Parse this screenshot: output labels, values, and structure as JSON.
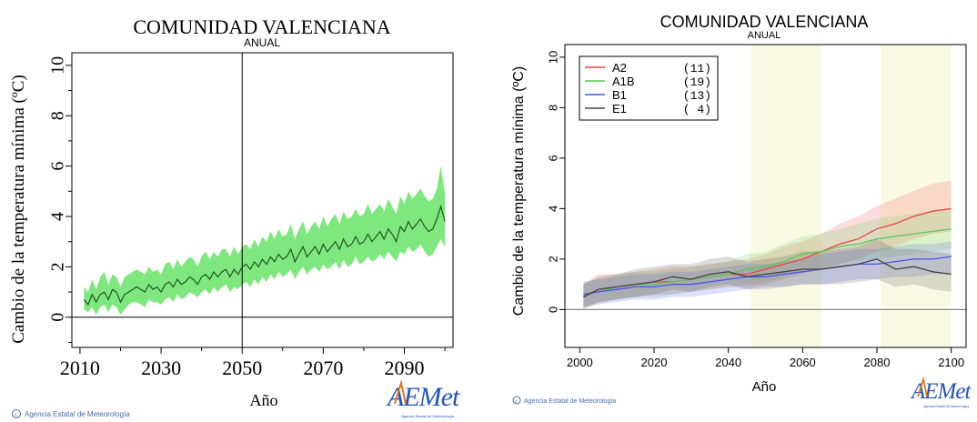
{
  "colors": {
    "band_green": "#7ee87e",
    "line_dark": "#225522",
    "axis": "#000000",
    "A2": "#ee4444",
    "A1B": "#55cc55",
    "B1": "#4455ee",
    "E1": "#444444",
    "highlight": "#fafae4",
    "logo_blue": "#2255bb",
    "logo_orange": "#e07820",
    "footer_blue": "#4a6aa8"
  },
  "footer": {
    "left_credit": "Agencia Estatal de Meteorología",
    "right_credit": "Agencia Estatal de Meteorología",
    "logo_text": "AEMet",
    "logo_subtext": "Agencia Estatal de Meteorología"
  },
  "chart_data": [
    {
      "type": "area",
      "title": "COMUNIDAD VALENCIANA",
      "subtitle": "ANUAL",
      "xlabel": "Año",
      "ylabel": "Cambio de la temperatura mínima (ºC)",
      "xlim": [
        2008,
        2102
      ],
      "ylim": [
        -1.2,
        10.5
      ],
      "xticks": [
        2010,
        2030,
        2050,
        2070,
        2090
      ],
      "yticks": [
        0,
        2,
        4,
        6,
        8,
        10
      ],
      "vline": 2050,
      "hline": 0,
      "x": [
        2011,
        2012,
        2013,
        2014,
        2015,
        2016,
        2017,
        2018,
        2019,
        2020,
        2021,
        2022,
        2023,
        2024,
        2025,
        2026,
        2027,
        2028,
        2029,
        2030,
        2031,
        2032,
        2033,
        2034,
        2035,
        2036,
        2037,
        2038,
        2039,
        2040,
        2041,
        2042,
        2043,
        2044,
        2045,
        2046,
        2047,
        2048,
        2049,
        2050,
        2051,
        2052,
        2053,
        2054,
        2055,
        2056,
        2057,
        2058,
        2059,
        2060,
        2061,
        2062,
        2063,
        2064,
        2065,
        2066,
        2067,
        2068,
        2069,
        2070,
        2071,
        2072,
        2073,
        2074,
        2075,
        2076,
        2077,
        2078,
        2079,
        2080,
        2081,
        2082,
        2083,
        2084,
        2085,
        2086,
        2087,
        2088,
        2089,
        2090,
        2091,
        2092,
        2093,
        2094,
        2095,
        2096,
        2097,
        2098,
        2099,
        2100
      ],
      "mean": [
        0.7,
        0.5,
        0.9,
        0.6,
        0.9,
        1.0,
        0.7,
        1.1,
        1.0,
        0.6,
        0.9,
        1.0,
        1.1,
        1.2,
        1.1,
        1.0,
        1.3,
        1.1,
        1.2,
        1.0,
        1.3,
        1.4,
        1.2,
        1.5,
        1.3,
        1.4,
        1.6,
        1.5,
        1.3,
        1.6,
        1.7,
        1.5,
        1.8,
        1.6,
        1.8,
        1.9,
        1.6,
        1.9,
        1.7,
        2.0,
        2.1,
        1.9,
        2.2,
        2.0,
        2.3,
        2.1,
        2.4,
        2.2,
        2.5,
        2.3,
        2.4,
        2.7,
        2.2,
        2.5,
        2.8,
        2.4,
        2.6,
        2.8,
        2.5,
        2.9,
        2.6,
        2.8,
        3.0,
        2.7,
        3.1,
        2.8,
        2.9,
        3.2,
        2.9,
        3.0,
        3.3,
        3.0,
        3.2,
        3.4,
        3.1,
        3.5,
        3.3,
        3.0,
        3.6,
        3.4,
        3.8,
        3.5,
        3.7,
        3.9,
        3.6,
        3.4,
        3.5,
        3.9,
        4.4,
        3.8
      ],
      "lower": [
        0.3,
        0.2,
        0.4,
        0.1,
        0.4,
        0.5,
        0.2,
        0.5,
        0.4,
        0.1,
        0.3,
        0.5,
        0.6,
        0.6,
        0.5,
        0.4,
        0.7,
        0.6,
        0.6,
        0.5,
        0.7,
        0.8,
        0.6,
        0.9,
        0.7,
        0.8,
        1.0,
        0.9,
        0.8,
        1.0,
        1.1,
        0.9,
        1.2,
        1.0,
        1.2,
        1.3,
        1.0,
        1.2,
        1.1,
        1.3,
        1.4,
        1.2,
        1.5,
        1.3,
        1.6,
        1.4,
        1.7,
        1.5,
        1.8,
        1.6,
        1.7,
        1.9,
        1.5,
        1.8,
        2.0,
        1.7,
        1.9,
        2.0,
        1.8,
        2.1,
        1.9,
        2.0,
        2.2,
        1.9,
        2.3,
        2.0,
        2.1,
        2.4,
        2.1,
        2.2,
        2.4,
        2.2,
        2.3,
        2.5,
        2.3,
        2.6,
        2.4,
        2.2,
        2.6,
        2.5,
        2.8,
        2.6,
        2.7,
        2.9,
        2.6,
        2.4,
        2.5,
        2.8,
        3.1,
        2.8
      ],
      "upper": [
        1.2,
        1.0,
        1.5,
        1.1,
        1.6,
        1.8,
        1.3,
        1.7,
        1.6,
        1.2,
        1.6,
        1.7,
        1.8,
        1.9,
        1.8,
        1.7,
        2.0,
        1.8,
        1.9,
        1.7,
        2.1,
        2.2,
        1.9,
        2.3,
        2.0,
        2.2,
        2.4,
        2.3,
        2.0,
        2.4,
        2.6,
        2.3,
        2.6,
        2.4,
        2.7,
        2.7,
        2.4,
        2.8,
        2.5,
        2.8,
        2.9,
        2.7,
        3.1,
        2.8,
        3.2,
        3.0,
        3.4,
        3.1,
        3.5,
        3.2,
        3.3,
        3.7,
        3.1,
        3.5,
        3.8,
        3.3,
        3.6,
        3.8,
        3.5,
        4.0,
        3.6,
        3.9,
        4.1,
        3.7,
        4.2,
        3.9,
        4.0,
        4.3,
        4.0,
        4.1,
        4.5,
        4.1,
        4.3,
        4.5,
        4.2,
        4.7,
        4.4,
        4.1,
        4.8,
        4.5,
        5.0,
        4.7,
        4.9,
        5.1,
        4.8,
        4.6,
        4.7,
        5.1,
        6.0,
        4.9
      ]
    },
    {
      "type": "line",
      "title": "COMUNIDAD VALENCIANA",
      "subtitle": "ANUAL",
      "xlabel": "Año",
      "ylabel": "Cambio de la temperatura mínima (ºC)",
      "xlim": [
        1996,
        2104
      ],
      "ylim": [
        -1.5,
        10.5
      ],
      "xticks": [
        2000,
        2020,
        2040,
        2060,
        2080,
        2100
      ],
      "yticks": [
        0,
        2,
        4,
        6,
        8,
        10
      ],
      "highlight_periods": [
        [
          2046,
          2065
        ],
        [
          2081,
          2100
        ]
      ],
      "hline": 0,
      "legend_position": "top-left",
      "x": [
        2001,
        2005,
        2010,
        2015,
        2020,
        2025,
        2030,
        2035,
        2040,
        2045,
        2050,
        2055,
        2060,
        2065,
        2070,
        2075,
        2080,
        2085,
        2090,
        2095,
        2100
      ],
      "series": [
        {
          "name": "A2",
          "count": "(11)",
          "color": "#ee4444",
          "values": [
            0.5,
            0.8,
            0.9,
            1.0,
            1.1,
            1.1,
            1.2,
            1.3,
            1.4,
            1.4,
            1.6,
            1.8,
            2.0,
            2.3,
            2.6,
            2.8,
            3.2,
            3.4,
            3.7,
            3.9,
            4.0
          ],
          "lower": [
            0.1,
            0.3,
            0.4,
            0.5,
            0.6,
            0.6,
            0.7,
            0.8,
            0.9,
            0.9,
            1.0,
            1.2,
            1.4,
            1.6,
            1.8,
            2.0,
            2.3,
            2.5,
            2.8,
            3.0,
            3.1
          ],
          "upper": [
            1.0,
            1.4,
            1.4,
            1.5,
            1.6,
            1.7,
            1.7,
            1.8,
            1.9,
            2.0,
            2.2,
            2.5,
            2.7,
            3.0,
            3.4,
            3.7,
            4.1,
            4.4,
            4.7,
            5.0,
            5.1
          ]
        },
        {
          "name": "A1B",
          "count": "(19)",
          "color": "#55cc55",
          "values": [
            0.6,
            0.7,
            0.9,
            1.0,
            1.0,
            1.1,
            1.2,
            1.3,
            1.4,
            1.6,
            1.7,
            1.9,
            2.2,
            2.3,
            2.5,
            2.6,
            2.8,
            2.9,
            3.0,
            3.1,
            3.2
          ],
          "lower": [
            0.1,
            0.2,
            0.4,
            0.5,
            0.5,
            0.6,
            0.7,
            0.8,
            0.9,
            1.0,
            1.1,
            1.3,
            1.5,
            1.6,
            1.8,
            1.9,
            2.0,
            2.1,
            2.2,
            2.3,
            2.4
          ],
          "upper": [
            1.1,
            1.2,
            1.4,
            1.5,
            1.5,
            1.6,
            1.7,
            1.8,
            1.9,
            2.2,
            2.3,
            2.6,
            2.9,
            3.0,
            3.2,
            3.4,
            3.6,
            3.7,
            3.8,
            3.9,
            4.0
          ]
        },
        {
          "name": "B1",
          "count": "(13)",
          "color": "#4455ee",
          "values": [
            0.6,
            0.7,
            0.8,
            0.9,
            0.9,
            1.0,
            1.0,
            1.1,
            1.2,
            1.3,
            1.3,
            1.4,
            1.5,
            1.6,
            1.7,
            1.8,
            1.8,
            1.9,
            2.0,
            2.0,
            2.1
          ],
          "lower": [
            0.1,
            0.2,
            0.3,
            0.4,
            0.4,
            0.5,
            0.5,
            0.6,
            0.7,
            0.8,
            0.8,
            0.9,
            1.0,
            1.0,
            1.1,
            1.2,
            1.2,
            1.3,
            1.3,
            1.4,
            1.4
          ],
          "upper": [
            1.1,
            1.2,
            1.3,
            1.4,
            1.4,
            1.5,
            1.5,
            1.6,
            1.7,
            1.8,
            1.8,
            1.9,
            2.0,
            2.2,
            2.3,
            2.4,
            2.4,
            2.5,
            2.6,
            2.6,
            2.7
          ]
        },
        {
          "name": "E1",
          "count": "( 4)",
          "color": "#444444",
          "values": [
            0.5,
            0.8,
            0.9,
            1.0,
            1.1,
            1.3,
            1.2,
            1.4,
            1.5,
            1.3,
            1.4,
            1.5,
            1.6,
            1.6,
            1.7,
            1.8,
            2.0,
            1.6,
            1.7,
            1.5,
            1.4
          ],
          "lower": [
            0.0,
            0.3,
            0.4,
            0.5,
            0.6,
            0.8,
            0.7,
            0.9,
            1.0,
            0.8,
            0.9,
            0.9,
            1.0,
            1.0,
            1.0,
            1.1,
            1.2,
            0.9,
            1.0,
            0.8,
            0.7
          ],
          "upper": [
            1.0,
            1.3,
            1.4,
            1.6,
            1.7,
            1.8,
            1.8,
            2.0,
            2.1,
            1.9,
            2.0,
            2.1,
            2.3,
            2.3,
            2.4,
            2.5,
            2.8,
            2.4,
            2.4,
            2.3,
            2.2
          ]
        }
      ]
    }
  ]
}
